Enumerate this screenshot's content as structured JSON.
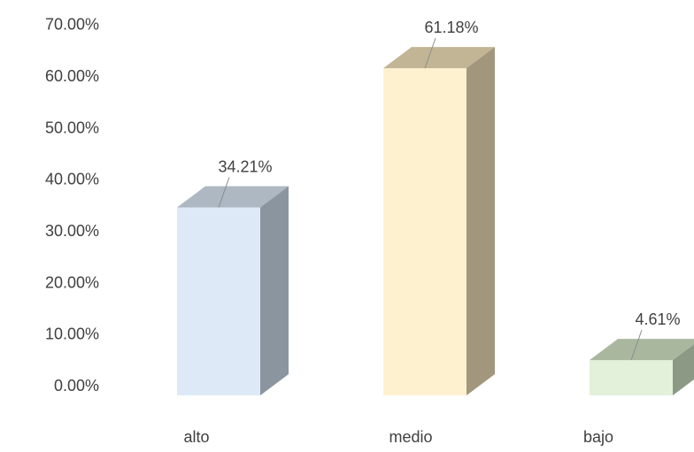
{
  "chart_data": {
    "type": "bar",
    "style": "3d-column",
    "categories": [
      "alto",
      "medio",
      "bajo"
    ],
    "values": [
      34.21,
      61.18,
      4.61
    ],
    "value_labels": [
      "34.21%",
      "61.18%",
      "4.61%"
    ],
    "y_ticks": [
      "0.00%",
      "10.00%",
      "20.00%",
      "30.00%",
      "40.00%",
      "50.00%",
      "60.00%",
      "70.00%"
    ],
    "ylim": [
      0,
      70
    ],
    "grid": false,
    "legend": "none",
    "bar_colors": [
      {
        "front": "#dde9f7",
        "top": "#adb8c3",
        "side": "#8a959f"
      },
      {
        "front": "#fef1cf",
        "top": "#c2b595",
        "side": "#a2977c"
      },
      {
        "front": "#e4f1da",
        "top": "#a9b79f",
        "side": "#8c9985"
      }
    ]
  }
}
